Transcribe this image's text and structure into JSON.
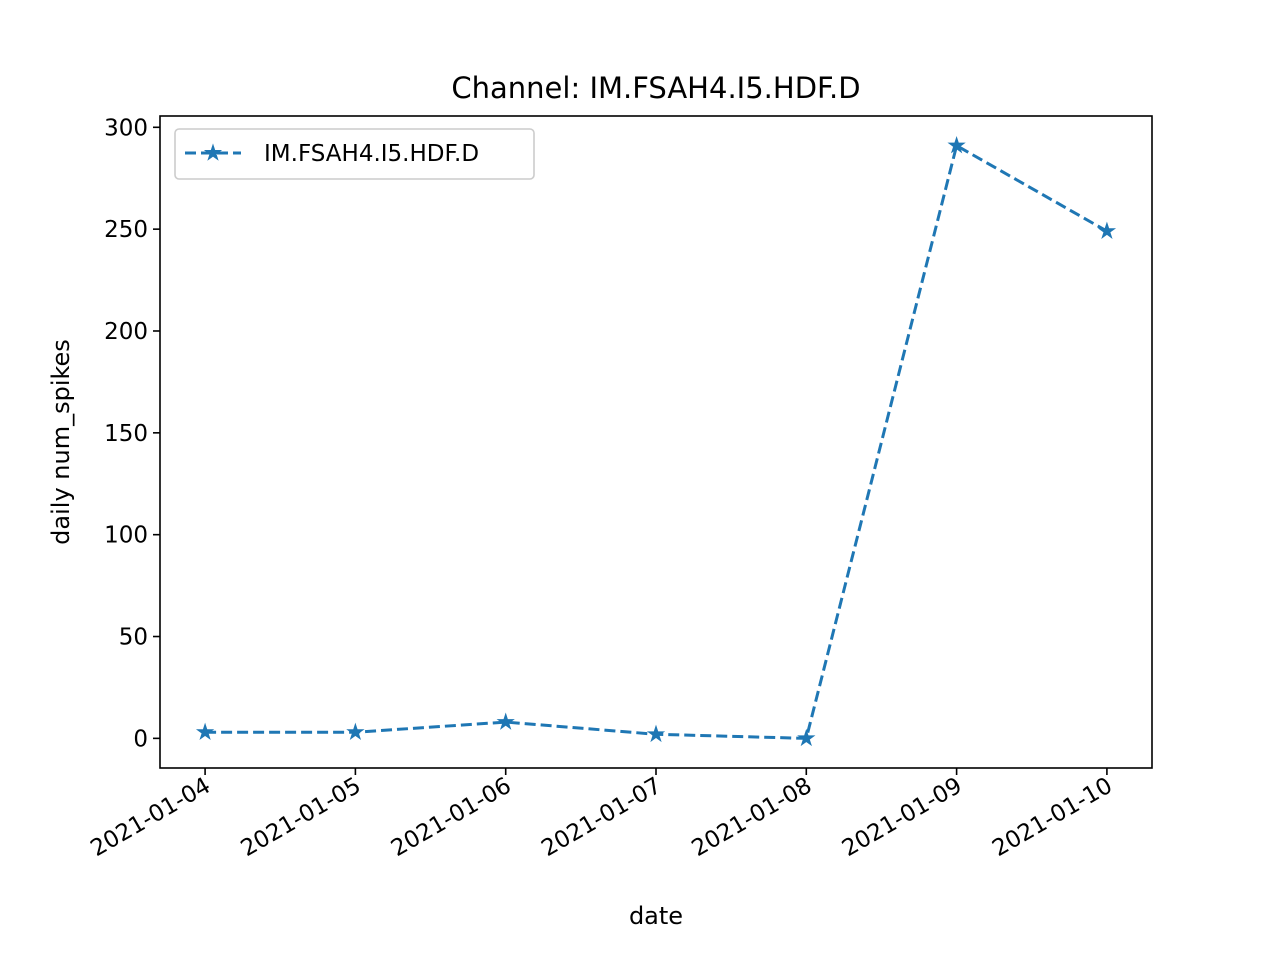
{
  "chart_data": {
    "type": "line",
    "title": "Channel: IM.FSAH4.I5.HDF.D",
    "xlabel": "date",
    "ylabel": "daily num_spikes",
    "x": [
      "2021-01-04",
      "2021-01-05",
      "2021-01-06",
      "2021-01-07",
      "2021-01-08",
      "2021-01-09",
      "2021-01-10"
    ],
    "series": [
      {
        "name": "IM.FSAH4.I5.HDF.D",
        "values": [
          3,
          3,
          8,
          2,
          0,
          291,
          249
        ],
        "color": "#1f77b4",
        "line_style": "dashed",
        "marker": "star"
      }
    ],
    "yticks": [
      0,
      50,
      100,
      150,
      200,
      250,
      300
    ],
    "ylim": [
      -14.55,
      305.55
    ],
    "grid": false,
    "legend_position": "upper left"
  }
}
